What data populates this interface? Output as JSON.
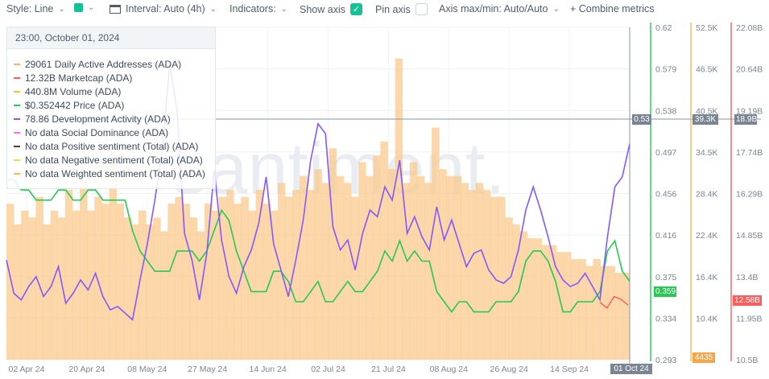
{
  "toolbar": {
    "style_label": "Style: Line",
    "interval_label": "Interval: Auto (4h)",
    "indicators_label": "Indicators:",
    "show_axis_label": "Show axis",
    "pin_axis_label": "Pin axis",
    "axis_minmax_label": "Axis max/min: Auto/Auto",
    "combine_label": "+ Combine metrics",
    "color": "#14c393"
  },
  "watermark": "santiment.",
  "legend": {
    "date": "23:00, October 01, 2024",
    "items": [
      {
        "value": "29061",
        "name": "Daily Active Addresses (ADA)",
        "color": "#f7b55f"
      },
      {
        "value": "12.32B",
        "name": "Marketcap (ADA)",
        "color": "#ff5b5b"
      },
      {
        "value": "440.8M",
        "name": "Volume (ADA)",
        "color": "#f5c52e"
      },
      {
        "value": "$0.352442",
        "name": "Price (ADA)",
        "color": "#26c953"
      },
      {
        "value": "78.86",
        "name": "Development Activity (ADA)",
        "color": "#8358ff"
      },
      {
        "value": "No data",
        "name": "Social Dominance (ADA)",
        "color": "#ff6ef0"
      },
      {
        "value": "No data",
        "name": "Positive sentiment (Total) (ADA)",
        "color": "#5b3a2e"
      },
      {
        "value": "No data",
        "name": "Negative sentiment (Total) (ADA)",
        "color": "#dfe34f"
      },
      {
        "value": "No data",
        "name": "Weighted sentiment (Total) (ADA)",
        "color": "#f7b55f"
      }
    ]
  },
  "chart_data": {
    "type": "line",
    "x_ticks": [
      "02 Apr 24",
      "20 Apr 24",
      "08 May 24",
      "27 May 24",
      "14 Jun 24",
      "02 Jul 24",
      "21 Jul 24",
      "08 Aug 24",
      "26 Aug 24",
      "14 Sep 24",
      "01 Oct 24"
    ],
    "axes": [
      {
        "name": "Price (ADA)",
        "color": "#26c953",
        "ticks": [
          "0.62",
          "0.579",
          "0.538",
          "0.497",
          "0.456",
          "0.416",
          "0.375",
          "0.334",
          "0.293"
        ],
        "range": [
          0.293,
          0.62
        ]
      },
      {
        "name": "Daily Active Addresses (ADA)",
        "color": "#f7b55f",
        "ticks": [
          "52.5K",
          "46.5K",
          "40.5K",
          "34.5K",
          "28.4K",
          "22.4K",
          "16.4K",
          "10.4K",
          "4435"
        ],
        "range": [
          4435,
          52500
        ]
      },
      {
        "name": "Marketcap (ADA)",
        "color": "#ff5b5b",
        "ticks": [
          "22.08B",
          "20.64B",
          "19.19B",
          "17.74B",
          "16.29B",
          "14.85B",
          "13.4B",
          "11.95B",
          "10.5B"
        ],
        "range": [
          10.5,
          22.08
        ]
      }
    ],
    "crosshair_labels": {
      "price": "0.53",
      "daa": "39.3K",
      "marketcap": "18.9B"
    },
    "last_labels": {
      "price": "0.359",
      "marketcap": "12.58B",
      "daa_min": "4435",
      "date": "01 Oct 24"
    },
    "series": [
      {
        "name": "Price (ADA)",
        "color": "#26c953",
        "unit": "USD",
        "values": [
          0.47,
          0.47,
          0.46,
          0.46,
          0.45,
          0.45,
          0.45,
          0.46,
          0.46,
          0.45,
          0.45,
          0.46,
          0.46,
          0.45,
          0.45,
          0.45,
          0.45,
          0.42,
          0.4,
          0.39,
          0.38,
          0.38,
          0.38,
          0.4,
          0.4,
          0.4,
          0.39,
          0.4,
          0.42,
          0.44,
          0.43,
          0.4,
          0.38,
          0.36,
          0.36,
          0.36,
          0.38,
          0.38,
          0.37,
          0.35,
          0.35,
          0.36,
          0.37,
          0.35,
          0.35,
          0.36,
          0.37,
          0.36,
          0.36,
          0.37,
          0.38,
          0.4,
          0.39,
          0.41,
          0.39,
          0.4,
          0.39,
          0.39,
          0.36,
          0.35,
          0.34,
          0.35,
          0.35,
          0.34,
          0.34,
          0.34,
          0.35,
          0.35,
          0.35,
          0.36,
          0.39,
          0.4,
          0.4,
          0.39,
          0.37,
          0.34,
          0.34,
          0.35,
          0.35,
          0.35,
          0.36,
          0.4,
          0.41,
          0.38,
          0.37
        ]
      },
      {
        "name": "Daily Active Addresses (ADA)",
        "color": "#f7b55f",
        "unit": "addresses",
        "values": [
          27000,
          24000,
          26000,
          25000,
          28000,
          24000,
          26000,
          25000,
          29000,
          26000,
          30000,
          26000,
          28000,
          27000,
          33000,
          27000,
          25000,
          24000,
          26000,
          24000,
          25000,
          23000,
          27000,
          28000,
          27000,
          25000,
          23000,
          27000,
          26000,
          28000,
          29000,
          27000,
          28000,
          26000,
          29000,
          27000,
          26000,
          30000,
          28000,
          29000,
          31000,
          29000,
          32000,
          30000,
          35000,
          31000,
          30000,
          28000,
          33000,
          31000,
          34000,
          36000,
          32000,
          48000,
          30000,
          33000,
          31000,
          30000,
          38000,
          32000,
          31000,
          31000,
          30000,
          29000,
          30000,
          29000,
          28000,
          28000,
          25000,
          24000,
          23000,
          22000,
          22000,
          21000,
          21000,
          20000,
          20000,
          19000,
          19000,
          18000,
          19000,
          18000,
          18000,
          17000,
          17000
        ]
      },
      {
        "name": "Development Activity (ADA)",
        "color": "#8358ff",
        "unit": "count",
        "values": [
          30,
          20,
          18,
          22,
          25,
          19,
          22,
          28,
          17,
          20,
          24,
          21,
          26,
          19,
          15,
          16,
          14,
          12,
          24,
          35,
          48,
          63,
          89,
          75,
          38,
          30,
          18,
          32,
          57,
          36,
          25,
          20,
          28,
          33,
          41,
          55,
          35,
          27,
          19,
          30,
          42,
          60,
          71,
          68,
          40,
          33,
          36,
          27,
          38,
          45,
          43,
          52,
          48,
          60,
          38,
          43,
          37,
          33,
          46,
          36,
          42,
          35,
          28,
          32,
          33,
          27,
          24,
          23,
          25,
          33,
          45,
          52,
          45,
          37,
          28,
          24,
          22,
          23,
          26,
          22,
          18,
          37,
          52,
          55,
          65
        ]
      },
      {
        "name": "Marketcap (ADA)",
        "color": "#ff5b5b",
        "unit": "USD",
        "values": [
          12.5,
          12.3,
          12.7,
          12.6,
          12.4
        ]
      },
      {
        "name": "Social Dominance (ADA)",
        "color": "#ff6ef0",
        "values": []
      },
      {
        "name": "Positive sentiment (Total) (ADA)",
        "color": "#5b3a2e",
        "values": []
      },
      {
        "name": "Negative sentiment (Total) (ADA)",
        "color": "#dfe34f",
        "values": []
      },
      {
        "name": "Volume (ADA)",
        "color": "#f5c52e",
        "values": []
      }
    ]
  }
}
